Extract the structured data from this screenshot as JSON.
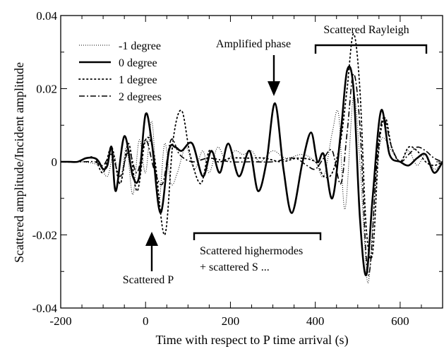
{
  "chart_data": {
    "type": "line",
    "title": "",
    "xlabel": "Time with respect to P time arrival (s)",
    "ylabel": "Scattered amplitude/Incident amplitude",
    "xlim": [
      -200,
      700
    ],
    "ylim": [
      -0.04,
      0.04
    ],
    "x_ticks": [
      {
        "value": -200,
        "label": "-200"
      },
      {
        "value": 0,
        "label": "0"
      },
      {
        "value": 200,
        "label": "200"
      },
      {
        "value": 400,
        "label": "400"
      },
      {
        "value": 600,
        "label": "600"
      }
    ],
    "y_ticks": [
      {
        "value": -0.04,
        "label": "-0.04"
      },
      {
        "value": -0.02,
        "label": "-0.02"
      },
      {
        "value": 0,
        "label": "0"
      },
      {
        "value": 0.02,
        "label": "0.02"
      },
      {
        "value": 0.04,
        "label": "0.04"
      }
    ],
    "grid": false,
    "legend_position": "top-left",
    "series": [
      {
        "name": "-1 degree",
        "style": "thin-dotted",
        "points": [
          [
            -200,
            0
          ],
          [
            -150,
            0
          ],
          [
            -110,
            -0.001
          ],
          [
            -90,
            -0.004
          ],
          [
            -75,
            0.002
          ],
          [
            -60,
            -0.006
          ],
          [
            -45,
            0.004
          ],
          [
            -30,
            -0.009
          ],
          [
            -15,
            0.006
          ],
          [
            0,
            -0.003
          ],
          [
            15,
            0.011
          ],
          [
            30,
            -0.012
          ],
          [
            45,
            0.005
          ],
          [
            60,
            -0.006
          ],
          [
            75,
            -0.003
          ],
          [
            95,
            0.004
          ],
          [
            115,
            -0.002
          ],
          [
            135,
            0.003
          ],
          [
            150,
            -0.003
          ],
          [
            170,
            0.004
          ],
          [
            190,
            0
          ],
          [
            210,
            0.003
          ],
          [
            230,
            0.002
          ],
          [
            250,
            0.003
          ],
          [
            270,
            0
          ],
          [
            300,
            0.003
          ],
          [
            330,
            0.001
          ],
          [
            370,
            0.002
          ],
          [
            400,
            0
          ],
          [
            420,
            -0.004
          ],
          [
            440,
            0.008
          ],
          [
            455,
            0.013
          ],
          [
            470,
            -0.013
          ],
          [
            490,
            0.018
          ],
          [
            505,
            0
          ],
          [
            515,
            -0.02
          ],
          [
            525,
            -0.033
          ],
          [
            540,
            -0.01
          ],
          [
            555,
            0.006
          ],
          [
            580,
            0.003
          ],
          [
            600,
            0
          ],
          [
            620,
            0.003
          ],
          [
            640,
            -0.001
          ],
          [
            660,
            0.002
          ],
          [
            680,
            -0.002
          ],
          [
            700,
            0
          ]
        ]
      },
      {
        "name": "0 degree",
        "style": "thick-solid",
        "points": [
          [
            -200,
            0
          ],
          [
            -180,
            0
          ],
          [
            -160,
            0
          ],
          [
            -140,
            0.001
          ],
          [
            -120,
            0.001
          ],
          [
            -110,
            0
          ],
          [
            -100,
            -0.002
          ],
          [
            -90,
            -0.001
          ],
          [
            -80,
            0.004
          ],
          [
            -70,
            -0.008
          ],
          [
            -50,
            0.007
          ],
          [
            -30,
            -0.004
          ],
          [
            -15,
            -0.004
          ],
          [
            0,
            0.013
          ],
          [
            15,
            0.005
          ],
          [
            35,
            -0.014
          ],
          [
            55,
            0.003
          ],
          [
            70,
            0.004
          ],
          [
            85,
            0.003
          ],
          [
            110,
            0.005
          ],
          [
            135,
            -0.004
          ],
          [
            155,
            0.003
          ],
          [
            175,
            -0.003
          ],
          [
            195,
            0.005
          ],
          [
            220,
            -0.004
          ],
          [
            245,
            0.003
          ],
          [
            265,
            -0.008
          ],
          [
            285,
            0
          ],
          [
            305,
            0.016
          ],
          [
            325,
            -0.002
          ],
          [
            345,
            -0.014
          ],
          [
            370,
            0
          ],
          [
            390,
            0.008
          ],
          [
            405,
            0
          ],
          [
            420,
            0.002
          ],
          [
            440,
            -0.01
          ],
          [
            460,
            0.008
          ],
          [
            475,
            0.025
          ],
          [
            490,
            0.02
          ],
          [
            505,
            -0.015
          ],
          [
            520,
            -0.031
          ],
          [
            535,
            -0.01
          ],
          [
            555,
            0.014
          ],
          [
            575,
            0.002
          ],
          [
            600,
            0
          ],
          [
            620,
            -0.001
          ],
          [
            640,
            0.001
          ],
          [
            660,
            0.002
          ],
          [
            680,
            -0.003
          ],
          [
            700,
            0
          ]
        ]
      },
      {
        "name": "1 degree",
        "style": "dotted",
        "points": [
          [
            -200,
            0
          ],
          [
            -160,
            0
          ],
          [
            -140,
            0.001
          ],
          [
            -120,
            0.001
          ],
          [
            -100,
            -0.003
          ],
          [
            -80,
            0.004
          ],
          [
            -60,
            -0.006
          ],
          [
            -40,
            0.005
          ],
          [
            -20,
            -0.008
          ],
          [
            0,
            0.006
          ],
          [
            20,
            0.002
          ],
          [
            45,
            -0.02
          ],
          [
            65,
            0.006
          ],
          [
            85,
            0.014
          ],
          [
            105,
            0.002
          ],
          [
            130,
            -0.006
          ],
          [
            150,
            0.003
          ],
          [
            170,
            0
          ],
          [
            200,
            0.001
          ],
          [
            240,
            0.001
          ],
          [
            280,
            0.001
          ],
          [
            320,
            0
          ],
          [
            360,
            0.001
          ],
          [
            400,
            0
          ],
          [
            420,
            -0.004
          ],
          [
            440,
            -0.003
          ],
          [
            460,
            0.006
          ],
          [
            475,
            0.02
          ],
          [
            490,
            0.035
          ],
          [
            505,
            0.02
          ],
          [
            520,
            -0.018
          ],
          [
            535,
            -0.025
          ],
          [
            550,
            0.004
          ],
          [
            565,
            0.012
          ],
          [
            580,
            0.004
          ],
          [
            600,
            0
          ],
          [
            620,
            0.004
          ],
          [
            640,
            0.003
          ],
          [
            660,
            0
          ],
          [
            680,
            -0.001
          ],
          [
            700,
            0
          ]
        ]
      },
      {
        "name": "2 degrees",
        "style": "dash-dot",
        "points": [
          [
            -200,
            0
          ],
          [
            -150,
            0
          ],
          [
            -120,
            0
          ],
          [
            -100,
            -0.001
          ],
          [
            -80,
            0.002
          ],
          [
            -60,
            -0.004
          ],
          [
            -40,
            0.003
          ],
          [
            -20,
            -0.003
          ],
          [
            0,
            0.006
          ],
          [
            20,
            -0.002
          ],
          [
            40,
            -0.006
          ],
          [
            60,
            0.006
          ],
          [
            80,
            0.002
          ],
          [
            110,
            0
          ],
          [
            150,
            0.001
          ],
          [
            200,
            0
          ],
          [
            250,
            0
          ],
          [
            300,
            0
          ],
          [
            350,
            0.001
          ],
          [
            380,
            -0.001
          ],
          [
            400,
            -0.002
          ],
          [
            420,
            0.001
          ],
          [
            440,
            0.003
          ],
          [
            460,
            -0.006
          ],
          [
            475,
            0.008
          ],
          [
            490,
            0.024
          ],
          [
            505,
            0.01
          ],
          [
            520,
            -0.026
          ],
          [
            530,
            -0.028
          ],
          [
            545,
            0
          ],
          [
            560,
            0.012
          ],
          [
            580,
            0.004
          ],
          [
            600,
            0
          ],
          [
            620,
            0.002
          ],
          [
            640,
            0.004
          ],
          [
            660,
            0.003
          ],
          [
            680,
            0.001
          ],
          [
            700,
            0
          ]
        ]
      }
    ],
    "annotations": [
      {
        "id": "amplified-phase",
        "text": "Amplified phase"
      },
      {
        "id": "scattered-rayleigh",
        "text": "Scattered Rayleigh"
      },
      {
        "id": "scattered-p",
        "text": "Scattered P"
      },
      {
        "id": "scattered-highermodes-1",
        "text": "Scattered highermodes"
      },
      {
        "id": "scattered-highermodes-2",
        "text": "+ scattered S ..."
      }
    ]
  }
}
